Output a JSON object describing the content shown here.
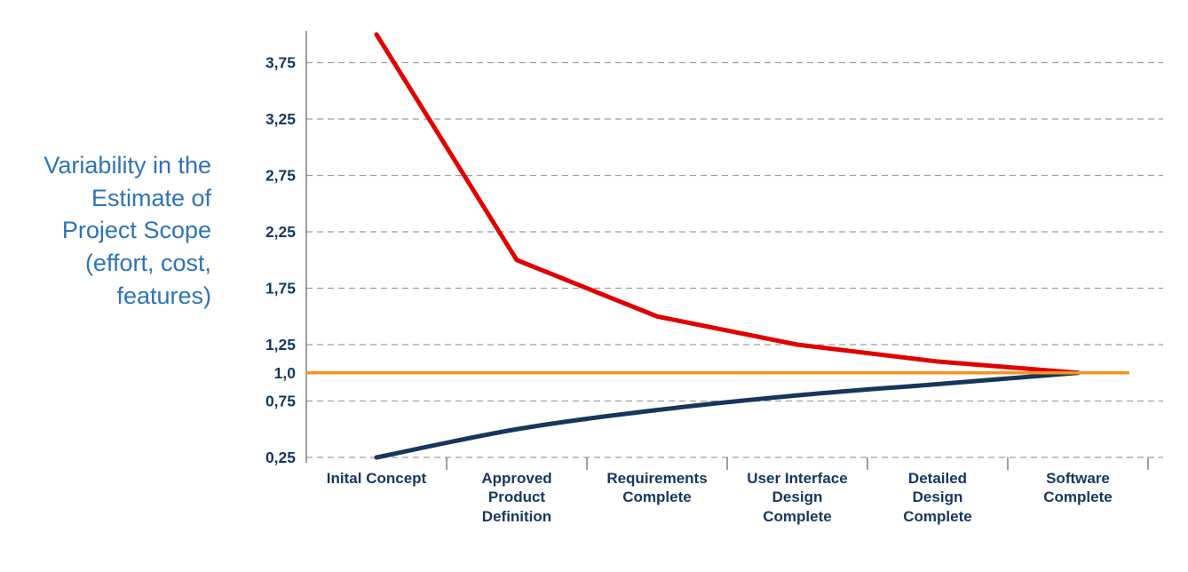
{
  "chart_data": {
    "type": "line",
    "title": "",
    "ylabel": "Variability in the\nEstimate of\nProject Scope\n(effort, cost,\nfeatures)",
    "xlabel": "",
    "categories": [
      "Inital Concept",
      "Approved\nProduct\nDefinition",
      "Requirements\nComplete",
      "User Interface\nDesign\nComplete",
      "Detailed\nDesign\nComplete",
      "Software\nComplete"
    ],
    "y_ticks": [
      {
        "label": "3,75",
        "value": 3.75
      },
      {
        "label": "3,25",
        "value": 3.25
      },
      {
        "label": "2,75",
        "value": 2.75
      },
      {
        "label": "2,25",
        "value": 2.25
      },
      {
        "label": "1,75",
        "value": 1.75
      },
      {
        "label": "1,25",
        "value": 1.25
      },
      {
        "label": "1,0",
        "value": 1.0
      },
      {
        "label": "0,75",
        "value": 0.75
      },
      {
        "label": "0,25",
        "value": 0.25
      }
    ],
    "ylim": [
      0.25,
      4.0
    ],
    "series": [
      {
        "name": "upper-estimate",
        "color": "#e00000",
        "smooth": false,
        "role": "line",
        "values": [
          4.0,
          2.0,
          1.5,
          1.25,
          1.1,
          1.0
        ]
      },
      {
        "name": "lower-estimate",
        "color": "#17365d",
        "smooth": true,
        "role": "line",
        "values": [
          0.25,
          0.5,
          0.67,
          0.8,
          0.9,
          1.0
        ]
      },
      {
        "name": "baseline",
        "color": "#f7941d",
        "smooth": false,
        "role": "baseline",
        "values": [
          1.0,
          1.0,
          1.0,
          1.0,
          1.0,
          1.0
        ]
      }
    ],
    "grid": "dashed-horizontal",
    "legend": "none",
    "grid_color": "#9e9e9e",
    "axis_color": "#7f7f7f",
    "tick_text_color": "#17375e"
  },
  "colors": {
    "background": "#ffffff",
    "ylabel_text": "#2e74b5",
    "category_text": "#17375e"
  }
}
